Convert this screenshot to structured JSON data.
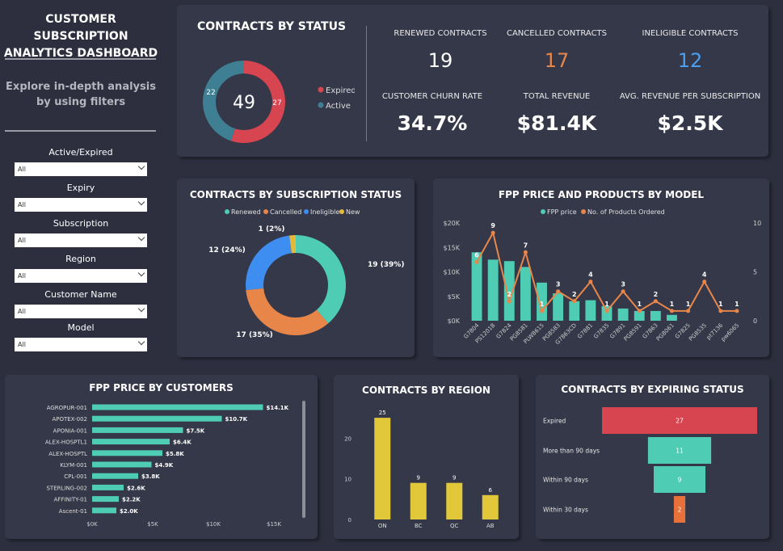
{
  "sidebar": {
    "title_line1": "CUSTOMER SUBSCRIPTION",
    "title_line2": "ANALYTICS DASHBOARD",
    "subtitle_line1": "Explore in-depth analysis",
    "subtitle_line2": "by using filters",
    "filters": [
      {
        "label": "Active/Expired",
        "value": "All"
      },
      {
        "label": "Expiry",
        "value": "All"
      },
      {
        "label": "Subscription",
        "value": "All"
      },
      {
        "label": "Region",
        "value": "All"
      },
      {
        "label": "Customer Name",
        "value": "All"
      },
      {
        "label": "Model",
        "value": "All"
      }
    ]
  },
  "status_card": {
    "title": "CONTRACTS BY STATUS",
    "total": "49",
    "expired_value": "27",
    "active_value": "22",
    "legend_expired": "Expired",
    "legend_active": "Active",
    "colors": {
      "expired": "#d64550",
      "active": "#3e7f93"
    }
  },
  "kpis": {
    "renewed_label": "RENEWED CONTRACTS",
    "renewed_value": "19",
    "cancelled_label": "CANCELLED CONTRACTS",
    "cancelled_value": "17",
    "ineligible_label": "INELIGIBLE CONTRACTS",
    "ineligible_value": "12",
    "churn_label": "CUSTOMER CHURN RATE",
    "churn_value": "34.7%",
    "revenue_label": "TOTAL REVENUE",
    "revenue_value": "$81.4K",
    "avg_label": "AVG. REVENUE PER SUBSCRIPTION",
    "avg_value": "$2.5K",
    "colors": {
      "cancelled": "#e8864a",
      "ineligible": "#4b9ff0"
    }
  },
  "subscription_card": {
    "title": "CONTRACTS BY SUBSCRIPTION STATUS"
  },
  "model_card": {
    "title": "FPP PRICE AND PRODUCTS BY MODEL"
  },
  "customers_card": {
    "title": "FPP PRICE BY CUSTOMERS"
  },
  "region_card": {
    "title": "CONTRACTS BY REGION"
  },
  "expiring_card": {
    "title": "CONTRACTS BY EXPIRING STATUS"
  },
  "chart_data": [
    {
      "id": "status",
      "type": "pie",
      "title": "CONTRACTS BY STATUS",
      "categories": [
        "Expired",
        "Active"
      ],
      "values": [
        27,
        22
      ],
      "center_label": "49"
    },
    {
      "id": "subscription",
      "type": "pie",
      "title": "CONTRACTS BY SUBSCRIPTION STATUS",
      "categories": [
        "Renewed",
        "Cancelled",
        "Ineligible",
        "New"
      ],
      "values": [
        19,
        17,
        12,
        1
      ],
      "labels": [
        "19 (39%)",
        "17 (35%)",
        "12 (24%)",
        "1 (2%)"
      ],
      "colors": [
        "#4fcdb4",
        "#e8864a",
        "#3d8ef0",
        "#e5b93a"
      ]
    },
    {
      "id": "model",
      "type": "bar",
      "title": "FPP PRICE AND PRODUCTS BY MODEL",
      "categories": [
        "G7804",
        "PS1201B",
        "G7824",
        "PG8581",
        "PLW8615",
        "PG8583",
        "G7863CD",
        "G7881",
        "G7835",
        "G7891",
        "PG8591",
        "G7863",
        "PG8061",
        "G7825",
        "PG8535",
        "pt7136",
        "pw6065"
      ],
      "series": [
        {
          "name": "FPP price",
          "type": "bar",
          "color": "#4fcdb4",
          "values": [
            14000,
            12500,
            12200,
            11000,
            7800,
            5600,
            4000,
            4200,
            3000,
            2500,
            2000,
            2000,
            1200,
            0,
            0,
            0,
            0
          ]
        },
        {
          "name": "No. of Products Ordered",
          "type": "line",
          "color": "#e8864a",
          "values": [
            6,
            9,
            2,
            7,
            1,
            3,
            2,
            4,
            1,
            3,
            1,
            2,
            1,
            1,
            4,
            1,
            1
          ]
        }
      ],
      "y_ticks": [
        "$0K",
        "$5K",
        "$10K",
        "$15K",
        "$20K"
      ],
      "ylim": [
        0,
        20000
      ],
      "y2_ticks": [
        "0",
        "5",
        "10"
      ],
      "y2lim": [
        0,
        10
      ]
    },
    {
      "id": "customers",
      "type": "bar",
      "title": "FPP PRICE BY CUSTOMERS",
      "orientation": "horizontal",
      "categories": [
        "AGROPUR-001",
        "APOTEX-002",
        "APONIA-001",
        "ALEX-HOSPTL1",
        "ALEX-HOSPTL",
        "KLYM-001",
        "CPL-001",
        "STERLING-002",
        "AFFINITY-01",
        "Ascent-01"
      ],
      "values": [
        14.1,
        10.7,
        7.5,
        6.4,
        5.8,
        4.9,
        3.8,
        2.6,
        2.2,
        2.0
      ],
      "labels": [
        "$14.1K",
        "$10.7K",
        "$7.5K",
        "$6.4K",
        "$5.8K",
        "$4.9K",
        "$3.8K",
        "$2.6K",
        "$2.2K",
        "$2.0K"
      ],
      "x_ticks": [
        "$0K",
        "$5K",
        "$10K",
        "$15K"
      ],
      "xlim": [
        0,
        15
      ],
      "color": "#4fcdb4"
    },
    {
      "id": "region",
      "type": "bar",
      "title": "CONTRACTS BY REGION",
      "categories": [
        "ON",
        "BC",
        "QC",
        "AB"
      ],
      "values": [
        25,
        9,
        9,
        6
      ],
      "y_ticks": [
        "0",
        "10",
        "20"
      ],
      "ylim": [
        0,
        28
      ],
      "color": "#e0c83a"
    },
    {
      "id": "expiring",
      "type": "bar",
      "title": "CONTRACTS BY EXPIRING STATUS",
      "orientation": "funnel",
      "categories": [
        "Expired",
        "More than 90 days",
        "Within 90 days",
        "Within 30 days"
      ],
      "values": [
        27,
        11,
        9,
        2
      ],
      "colors": [
        "#d64550",
        "#4fcdb4",
        "#4fcdb4",
        "#e8703a"
      ]
    }
  ]
}
